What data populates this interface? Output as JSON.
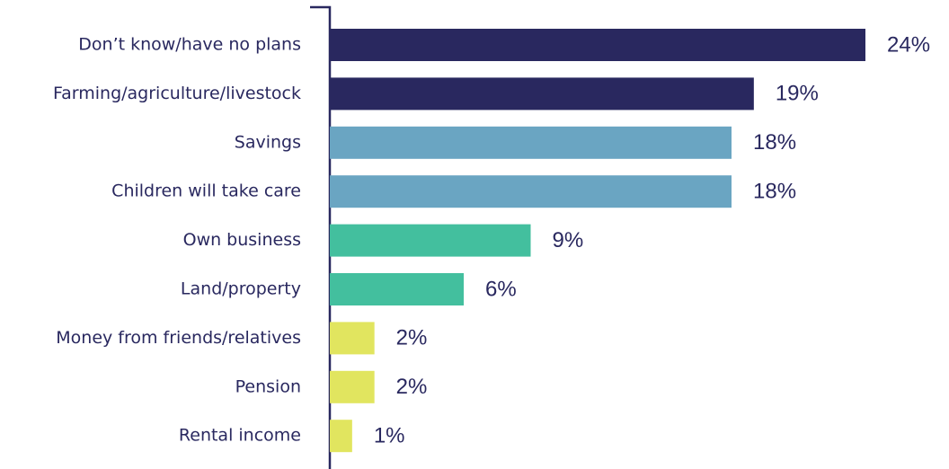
{
  "chart_data": {
    "type": "bar",
    "orientation": "horizontal",
    "categories": [
      "Don’t know/have no plans",
      "Farming/agriculture/livestock",
      "Savings",
      "Children will take care",
      "Own business",
      "Land/property",
      "Money from friends/relatives",
      "Pension",
      "Rental income"
    ],
    "values": [
      24,
      19,
      18,
      18,
      9,
      6,
      2,
      2,
      1
    ],
    "value_labels": [
      "24%",
      "19%",
      "18%",
      "18%",
      "9%",
      "6%",
      "2%",
      "2%",
      "1%"
    ],
    "colors": [
      "#29285f",
      "#29285f",
      "#6aa5c2",
      "#6aa5c2",
      "#43bf9e",
      "#43bf9e",
      "#e1e55f",
      "#e1e55f",
      "#e1e55f"
    ]
  }
}
